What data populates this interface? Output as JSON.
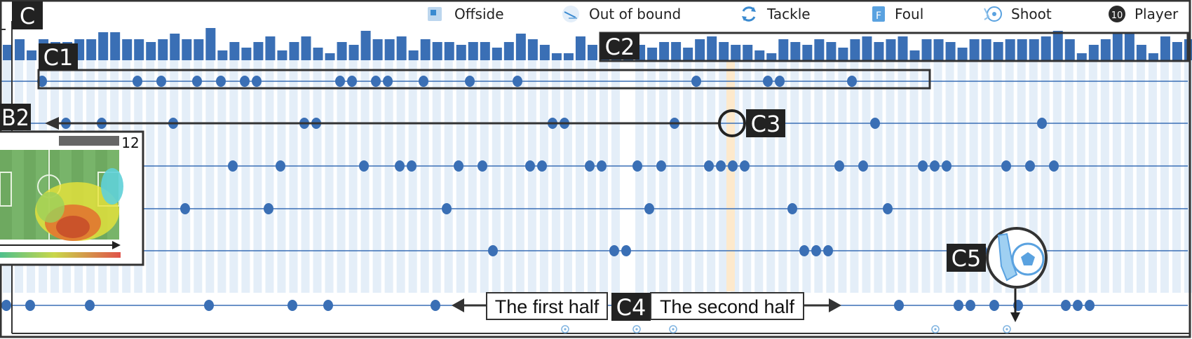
{
  "panel": {
    "label": "C"
  },
  "legend": [
    {
      "icon": "offside-icon",
      "label": "Offside"
    },
    {
      "icon": "out-of-bound-icon",
      "label": "Out of bound"
    },
    {
      "icon": "tackle-icon",
      "label": "Tackle"
    },
    {
      "icon": "foul-icon",
      "label": "Foul",
      "glyph": "F"
    },
    {
      "icon": "shoot-icon",
      "label": "Shoot"
    },
    {
      "icon": "player-icon",
      "label": "Player",
      "glyph": "10"
    }
  ],
  "callouts": {
    "c1": "C1",
    "c2": "C2",
    "c3": "C3",
    "c4": "C4",
    "c5": "C5",
    "b2": "B2"
  },
  "halves": {
    "first": "The first half",
    "second": "The second half"
  },
  "heatmap": {
    "count": "12"
  },
  "colors": {
    "bar": "#3a6fb5",
    "dot": "#3a6fb5",
    "column": "#e4eef8",
    "highlight": "#fde9cc",
    "frame": "#333333",
    "tag_bg": "#222222"
  },
  "chart_data": {
    "type": "timeline",
    "bars": [
      22,
      30,
      14,
      30,
      26,
      26,
      30,
      30,
      40,
      40,
      30,
      30,
      26,
      30,
      38,
      30,
      30,
      46,
      14,
      26,
      18,
      26,
      34,
      14,
      26,
      34,
      18,
      10,
      26,
      22,
      42,
      30,
      30,
      34,
      14,
      30,
      26,
      26,
      22,
      26,
      26,
      18,
      26,
      38,
      30,
      22,
      10,
      10,
      34,
      22,
      22,
      22,
      26,
      22,
      18,
      26,
      26,
      18,
      30,
      34,
      26,
      22,
      22,
      14,
      10,
      30,
      26,
      22,
      30,
      26,
      18,
      30,
      34,
      26,
      30,
      34,
      14,
      30,
      30,
      26,
      18,
      30,
      30,
      26,
      30,
      30,
      30,
      34,
      42,
      30,
      10,
      22,
      30,
      38,
      38,
      22,
      10,
      34,
      26,
      30,
      38,
      42,
      30,
      10,
      30,
      38,
      34,
      22
    ],
    "rows": [
      [
        60,
        196,
        230,
        281,
        315,
        349,
        366,
        485,
        502,
        536,
        553,
        604,
        670,
        738,
        993,
        1095,
        1112,
        1215
      ],
      [
        94,
        145,
        247,
        434,
        451,
        788,
        805,
        962,
        1078,
        1248,
        1486
      ],
      [
        196,
        332,
        400,
        519,
        570,
        587,
        654,
        688,
        756,
        773,
        841,
        858,
        909,
        943,
        1011,
        1028,
        1045,
        1062,
        1197,
        1231,
        1316,
        1333,
        1350,
        1435,
        1469,
        1503
      ],
      [
        264,
        383,
        637,
        926,
        1130,
        1266
      ],
      [
        703,
        876,
        893,
        1147,
        1164,
        1181,
        1401
      ],
      [
        9,
        43,
        128,
        298,
        417,
        468,
        621,
        1282,
        1367,
        1384,
        1418,
        1452,
        1520,
        1537,
        1554
      ]
    ],
    "shoot_markers_x": [
      806,
      908,
      960,
      1334,
      1436
    ]
  }
}
